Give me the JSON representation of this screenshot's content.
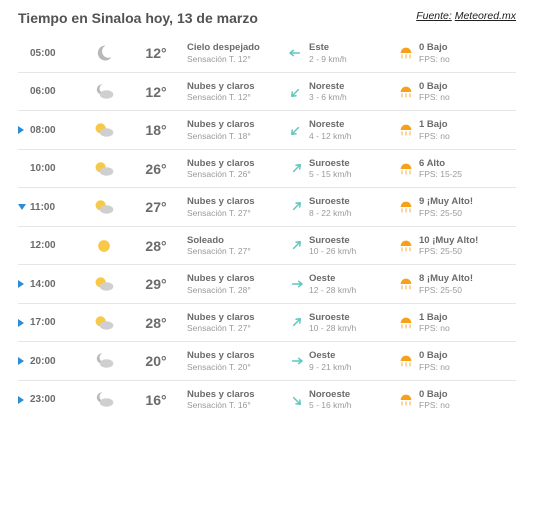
{
  "header": {
    "title": "Tiempo en Sinaloa hoy, 13 de marzo",
    "source_label": "Fuente:",
    "source_value": "Meteored.mx"
  },
  "colors": {
    "text_primary": "#535353",
    "text_secondary": "#6b6b6b",
    "text_muted": "#9a9a9a",
    "divider": "#e6e6e6",
    "marker_right": "#2a8dd6",
    "marker_down": "#2a8dd6",
    "wind_arrow": "#5fc6c0",
    "uv_orange": "#f7a11b",
    "moon_gray": "#b8b8b8",
    "sun_yellow": "#f7c948",
    "cloud_gray": "#cfcfcf"
  },
  "rows": [
    {
      "marker": "none",
      "time": "05:00",
      "icon": "moon",
      "temp": "12°",
      "cond": "Cielo despejado",
      "sens": "Sensación T. 12°",
      "wind_dir": "Este",
      "wind_speed": "2 - 9 km/h",
      "wind_rot": 270,
      "uv_val": "0 Bajo",
      "uv_fps": "FPS: no"
    },
    {
      "marker": "none",
      "time": "06:00",
      "icon": "moon-cloud",
      "temp": "12°",
      "cond": "Nubes y claros",
      "sens": "Sensación T. 12°",
      "wind_dir": "Noreste",
      "wind_speed": "3 - 6 km/h",
      "wind_rot": 225,
      "uv_val": "0 Bajo",
      "uv_fps": "FPS: no"
    },
    {
      "marker": "right",
      "time": "08:00",
      "icon": "sun-cloud",
      "temp": "18°",
      "cond": "Nubes y claros",
      "sens": "Sensación T. 18°",
      "wind_dir": "Noreste",
      "wind_speed": "4 - 12 km/h",
      "wind_rot": 225,
      "uv_val": "1 Bajo",
      "uv_fps": "FPS: no"
    },
    {
      "marker": "none",
      "time": "10:00",
      "icon": "sun-cloud",
      "temp": "26°",
      "cond": "Nubes y claros",
      "sens": "Sensación T. 26°",
      "wind_dir": "Suroeste",
      "wind_speed": "5 - 15 km/h",
      "wind_rot": 45,
      "uv_val": "6 Alto",
      "uv_fps": "FPS: 15-25"
    },
    {
      "marker": "down",
      "time": "11:00",
      "icon": "sun-cloud",
      "temp": "27°",
      "cond": "Nubes y claros",
      "sens": "Sensación T. 27°",
      "wind_dir": "Suroeste",
      "wind_speed": "8 - 22 km/h",
      "wind_rot": 45,
      "uv_val": "9 ¡Muy Alto!",
      "uv_fps": "FPS: 25-50"
    },
    {
      "marker": "none",
      "time": "12:00",
      "icon": "sun",
      "temp": "28°",
      "cond": "Soleado",
      "sens": "Sensación T. 27°",
      "wind_dir": "Suroeste",
      "wind_speed": "10 - 26 km/h",
      "wind_rot": 45,
      "uv_val": "10 ¡Muy Alto!",
      "uv_fps": "FPS: 25-50"
    },
    {
      "marker": "right",
      "time": "14:00",
      "icon": "sun-cloud",
      "temp": "29°",
      "cond": "Nubes y claros",
      "sens": "Sensación T. 28°",
      "wind_dir": "Oeste",
      "wind_speed": "12 - 28 km/h",
      "wind_rot": 90,
      "uv_val": "8 ¡Muy Alto!",
      "uv_fps": "FPS: 25-50"
    },
    {
      "marker": "right",
      "time": "17:00",
      "icon": "sun-cloud",
      "temp": "28°",
      "cond": "Nubes y claros",
      "sens": "Sensación T. 27°",
      "wind_dir": "Suroeste",
      "wind_speed": "10 - 28 km/h",
      "wind_rot": 45,
      "uv_val": "1 Bajo",
      "uv_fps": "FPS: no"
    },
    {
      "marker": "right",
      "time": "20:00",
      "icon": "moon-cloud",
      "temp": "20°",
      "cond": "Nubes y claros",
      "sens": "Sensación T. 20°",
      "wind_dir": "Oeste",
      "wind_speed": "9 - 21 km/h",
      "wind_rot": 90,
      "uv_val": "0 Bajo",
      "uv_fps": "FPS: no"
    },
    {
      "marker": "right",
      "time": "23:00",
      "icon": "moon-cloud",
      "temp": "16°",
      "cond": "Nubes y claros",
      "sens": "Sensación T. 16°",
      "wind_dir": "Noroeste",
      "wind_speed": "5 - 16 km/h",
      "wind_rot": 135,
      "uv_val": "0 Bajo",
      "uv_fps": "FPS: no"
    }
  ]
}
